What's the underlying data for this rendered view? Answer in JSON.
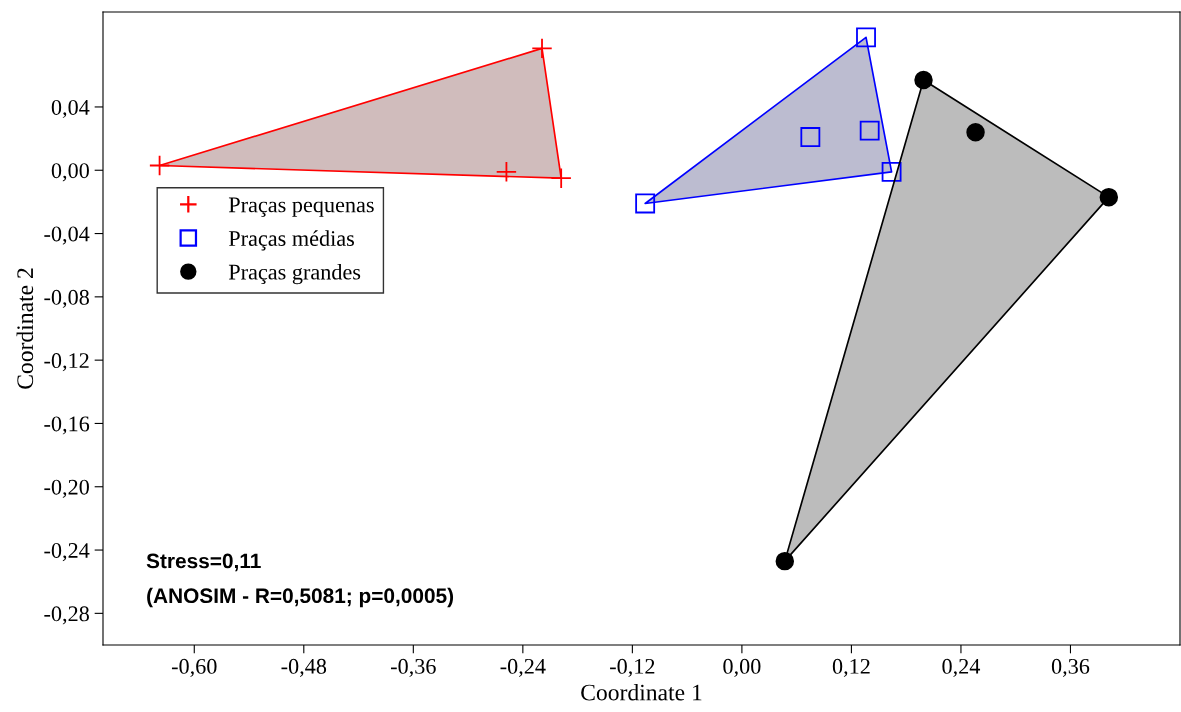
{
  "chart_data": {
    "type": "scatter",
    "xlabel": "Coordinate 1",
    "ylabel": "Coordinate 2",
    "series": [
      {
        "type": "area",
        "color": "#ff0000",
        "x": [
          -0.638,
          -0.219,
          -0.198
        ],
        "values": [
          0.003,
          0.077,
          -0.005
        ]
      },
      {
        "type": "area",
        "color": "#0000ff",
        "x": [
          -0.106,
          0.136,
          0.164
        ],
        "values": [
          -0.021,
          0.084,
          -0.001
        ]
      },
      {
        "type": "area",
        "color": "#000000",
        "x": [
          0.199,
          0.402,
          0.047
        ],
        "values": [
          0.057,
          -0.017,
          -0.247
        ]
      },
      {
        "name": "Praças pequenas",
        "color": "#ff0000",
        "marker": "cross",
        "x": [
          -0.638,
          -0.219,
          -0.258,
          -0.198
        ],
        "values": [
          0.003,
          0.077,
          -0.001,
          -0.005
        ]
      },
      {
        "name": "Praças médias",
        "color": "#0000ff",
        "marker": "square",
        "x": [
          -0.106,
          0.136,
          0.075,
          0.14,
          0.164
        ],
        "values": [
          -0.021,
          0.084,
          0.021,
          0.025,
          -0.001
        ]
      },
      {
        "name": "Praças grandes",
        "color": "#000000",
        "marker": "circle",
        "x": [
          0.199,
          0.256,
          0.402,
          0.047
        ],
        "values": [
          0.057,
          0.024,
          -0.017,
          -0.247
        ]
      }
    ],
    "xlim": [
      -0.7,
      0.48
    ],
    "ylim": [
      -0.3,
      0.1
    ],
    "xticks": [
      {
        "value": -0.6,
        "label": "-0,60"
      },
      {
        "value": -0.48,
        "label": "-0,48"
      },
      {
        "value": -0.36,
        "label": "-0,36"
      },
      {
        "value": -0.24,
        "label": "-0,24"
      },
      {
        "value": -0.12,
        "label": "-0,12"
      },
      {
        "value": 0.0,
        "label": "0,00"
      },
      {
        "value": 0.12,
        "label": "0,12"
      },
      {
        "value": 0.24,
        "label": "0,24"
      },
      {
        "value": 0.36,
        "label": "0,36"
      }
    ],
    "yticks": [
      {
        "value": 0.04,
        "label": "0,04"
      },
      {
        "value": 0.0,
        "label": "0,00"
      },
      {
        "value": -0.04,
        "label": "-0,04"
      },
      {
        "value": -0.08,
        "label": "-0,08"
      },
      {
        "value": -0.12,
        "label": "-0,12"
      },
      {
        "value": -0.16,
        "label": "-0,16"
      },
      {
        "value": -0.2,
        "label": "-0,20"
      },
      {
        "value": -0.24,
        "label": "-0,24"
      },
      {
        "value": -0.28,
        "label": "-0,28"
      }
    ],
    "grid": false,
    "legend": "top left",
    "annotations": [
      "Stress=0,11",
      "(ANOSIM - R=0,5081; p=0,0005)"
    ]
  }
}
